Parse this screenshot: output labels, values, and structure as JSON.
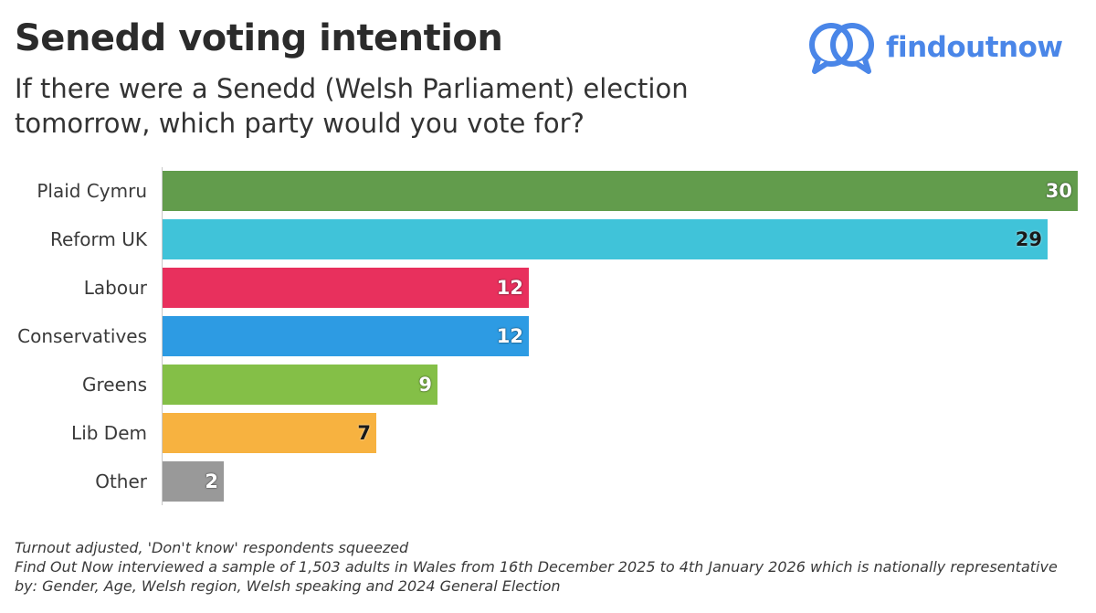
{
  "header": {
    "title": "Senedd voting intention",
    "subtitle": "If there were a Senedd (Welsh Parliament) election tomorrow, which party would you vote for?"
  },
  "logo": {
    "text": "findoutnow",
    "color": "#4a86e8",
    "icon": "speech-bubbles-icon"
  },
  "chart_data": {
    "type": "bar",
    "orientation": "horizontal",
    "title": "Senedd voting intention",
    "subtitle": "If there were a Senedd (Welsh Parliament) election tomorrow, which party would you vote for?",
    "categories": [
      "Plaid Cymru",
      "Reform UK",
      "Labour",
      "Conservatives",
      "Greens",
      "Lib Dem",
      "Other"
    ],
    "values": [
      30,
      29,
      12,
      12,
      9,
      7,
      2
    ],
    "value_labels": [
      "30",
      "29",
      "12",
      "12",
      "9",
      "7",
      "2"
    ],
    "colors": [
      "#629c4c",
      "#40c3d9",
      "#e8305d",
      "#2d9be3",
      "#84bf47",
      "#f7b240",
      "#999999"
    ],
    "label_colors": [
      "#ffffff",
      "#1a1a1a",
      "#ffffff",
      "#ffffff",
      "#ffffff",
      "#1a1a1a",
      "#ffffff"
    ],
    "xlim": [
      0,
      30
    ],
    "grid": false,
    "legend": "none"
  },
  "footnote": {
    "line1": "Turnout adjusted, 'Don't know' respondents squeezed",
    "line2": "Find Out Now interviewed a sample of 1,503 adults in Wales from 16th December 2025 to 4th January 2026 which is nationally representative by: Gender, Age, Welsh region, Welsh speaking and 2024 General Election"
  }
}
